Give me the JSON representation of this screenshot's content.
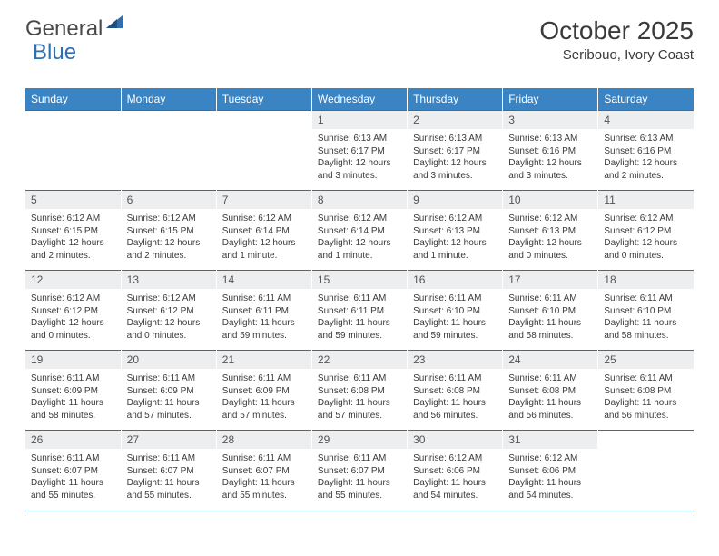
{
  "brand": {
    "part1": "General",
    "part2": "Blue"
  },
  "title": "October 2025",
  "location": "Seribouo, Ivory Coast",
  "colors": {
    "header_bg": "#3b84c4",
    "header_text": "#ffffff",
    "daynum_bg": "#eceef0",
    "border": "#2f6fb0",
    "text": "#3a3a3a",
    "brand_blue": "#2f6fb0"
  },
  "weekdays": [
    "Sunday",
    "Monday",
    "Tuesday",
    "Wednesday",
    "Thursday",
    "Friday",
    "Saturday"
  ],
  "weeks": [
    [
      {
        "empty": true
      },
      {
        "empty": true
      },
      {
        "empty": true
      },
      {
        "num": "1",
        "sunrise": "6:13 AM",
        "sunset": "6:17 PM",
        "daylight": "12 hours and 3 minutes."
      },
      {
        "num": "2",
        "sunrise": "6:13 AM",
        "sunset": "6:17 PM",
        "daylight": "12 hours and 3 minutes."
      },
      {
        "num": "3",
        "sunrise": "6:13 AM",
        "sunset": "6:16 PM",
        "daylight": "12 hours and 3 minutes."
      },
      {
        "num": "4",
        "sunrise": "6:13 AM",
        "sunset": "6:16 PM",
        "daylight": "12 hours and 2 minutes."
      }
    ],
    [
      {
        "num": "5",
        "sunrise": "6:12 AM",
        "sunset": "6:15 PM",
        "daylight": "12 hours and 2 minutes."
      },
      {
        "num": "6",
        "sunrise": "6:12 AM",
        "sunset": "6:15 PM",
        "daylight": "12 hours and 2 minutes."
      },
      {
        "num": "7",
        "sunrise": "6:12 AM",
        "sunset": "6:14 PM",
        "daylight": "12 hours and 1 minute."
      },
      {
        "num": "8",
        "sunrise": "6:12 AM",
        "sunset": "6:14 PM",
        "daylight": "12 hours and 1 minute."
      },
      {
        "num": "9",
        "sunrise": "6:12 AM",
        "sunset": "6:13 PM",
        "daylight": "12 hours and 1 minute."
      },
      {
        "num": "10",
        "sunrise": "6:12 AM",
        "sunset": "6:13 PM",
        "daylight": "12 hours and 0 minutes."
      },
      {
        "num": "11",
        "sunrise": "6:12 AM",
        "sunset": "6:12 PM",
        "daylight": "12 hours and 0 minutes."
      }
    ],
    [
      {
        "num": "12",
        "sunrise": "6:12 AM",
        "sunset": "6:12 PM",
        "daylight": "12 hours and 0 minutes."
      },
      {
        "num": "13",
        "sunrise": "6:12 AM",
        "sunset": "6:12 PM",
        "daylight": "12 hours and 0 minutes."
      },
      {
        "num": "14",
        "sunrise": "6:11 AM",
        "sunset": "6:11 PM",
        "daylight": "11 hours and 59 minutes."
      },
      {
        "num": "15",
        "sunrise": "6:11 AM",
        "sunset": "6:11 PM",
        "daylight": "11 hours and 59 minutes."
      },
      {
        "num": "16",
        "sunrise": "6:11 AM",
        "sunset": "6:10 PM",
        "daylight": "11 hours and 59 minutes."
      },
      {
        "num": "17",
        "sunrise": "6:11 AM",
        "sunset": "6:10 PM",
        "daylight": "11 hours and 58 minutes."
      },
      {
        "num": "18",
        "sunrise": "6:11 AM",
        "sunset": "6:10 PM",
        "daylight": "11 hours and 58 minutes."
      }
    ],
    [
      {
        "num": "19",
        "sunrise": "6:11 AM",
        "sunset": "6:09 PM",
        "daylight": "11 hours and 58 minutes."
      },
      {
        "num": "20",
        "sunrise": "6:11 AM",
        "sunset": "6:09 PM",
        "daylight": "11 hours and 57 minutes."
      },
      {
        "num": "21",
        "sunrise": "6:11 AM",
        "sunset": "6:09 PM",
        "daylight": "11 hours and 57 minutes."
      },
      {
        "num": "22",
        "sunrise": "6:11 AM",
        "sunset": "6:08 PM",
        "daylight": "11 hours and 57 minutes."
      },
      {
        "num": "23",
        "sunrise": "6:11 AM",
        "sunset": "6:08 PM",
        "daylight": "11 hours and 56 minutes."
      },
      {
        "num": "24",
        "sunrise": "6:11 AM",
        "sunset": "6:08 PM",
        "daylight": "11 hours and 56 minutes."
      },
      {
        "num": "25",
        "sunrise": "6:11 AM",
        "sunset": "6:08 PM",
        "daylight": "11 hours and 56 minutes."
      }
    ],
    [
      {
        "num": "26",
        "sunrise": "6:11 AM",
        "sunset": "6:07 PM",
        "daylight": "11 hours and 55 minutes."
      },
      {
        "num": "27",
        "sunrise": "6:11 AM",
        "sunset": "6:07 PM",
        "daylight": "11 hours and 55 minutes."
      },
      {
        "num": "28",
        "sunrise": "6:11 AM",
        "sunset": "6:07 PM",
        "daylight": "11 hours and 55 minutes."
      },
      {
        "num": "29",
        "sunrise": "6:11 AM",
        "sunset": "6:07 PM",
        "daylight": "11 hours and 55 minutes."
      },
      {
        "num": "30",
        "sunrise": "6:12 AM",
        "sunset": "6:06 PM",
        "daylight": "11 hours and 54 minutes."
      },
      {
        "num": "31",
        "sunrise": "6:12 AM",
        "sunset": "6:06 PM",
        "daylight": "11 hours and 54 minutes."
      },
      {
        "empty": true
      }
    ]
  ],
  "labels": {
    "sunrise": "Sunrise: ",
    "sunset": "Sunset: ",
    "daylight": "Daylight: "
  }
}
